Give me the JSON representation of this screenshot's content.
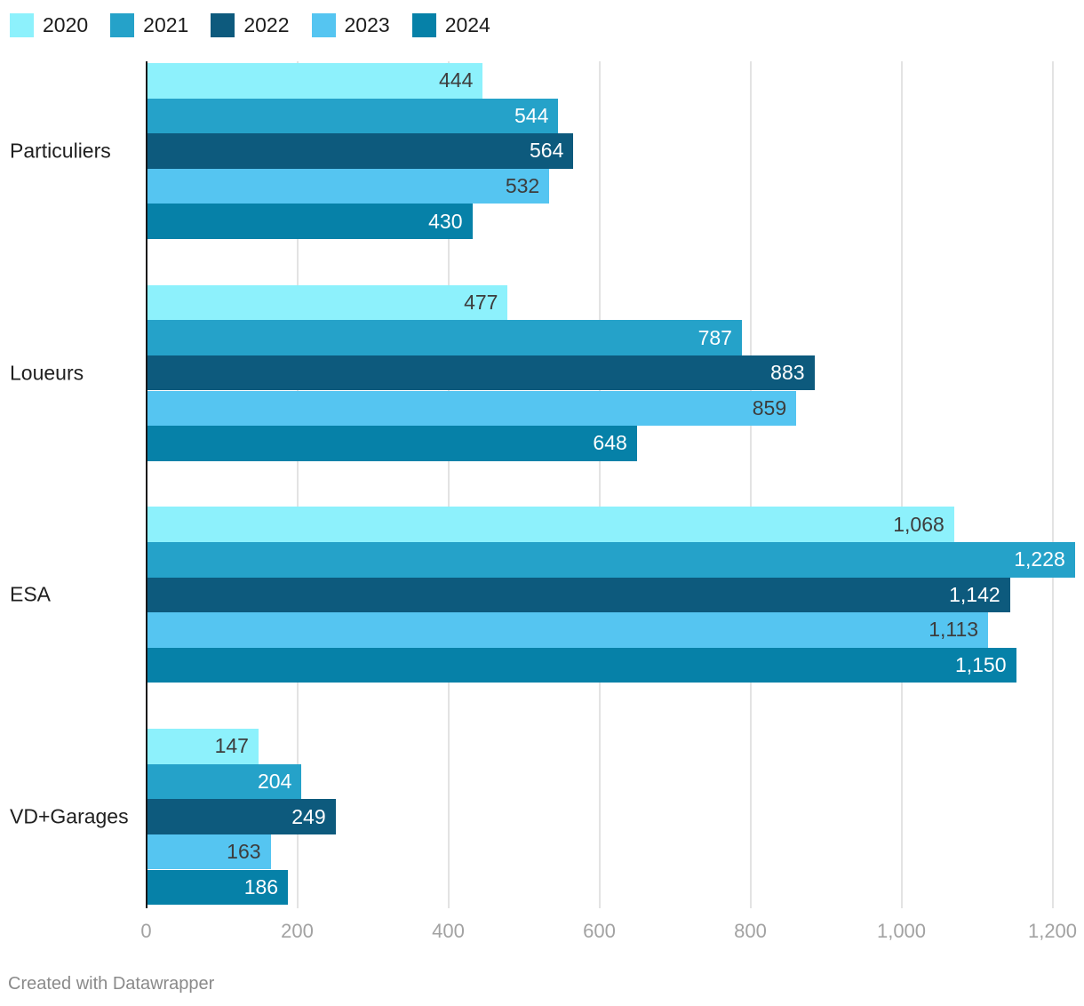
{
  "legend": {
    "items": [
      {
        "label": "2020",
        "color": "#8df1fc"
      },
      {
        "label": "2021",
        "color": "#25a2c9"
      },
      {
        "label": "2022",
        "color": "#0d5a7d"
      },
      {
        "label": "2023",
        "color": "#55c5f1"
      },
      {
        "label": "2024",
        "color": "#0681a8"
      }
    ]
  },
  "chart_data": {
    "type": "bar",
    "orientation": "horizontal",
    "categories": [
      "Particuliers",
      "Loueurs",
      "ESA",
      "VD+Garages"
    ],
    "series": [
      {
        "name": "2020",
        "color": "#8df1fc",
        "label_color": "#3d3d3d",
        "values": [
          444,
          477,
          1068,
          147
        ],
        "value_labels": [
          "444",
          "477",
          "1,068",
          "147"
        ]
      },
      {
        "name": "2021",
        "color": "#25a2c9",
        "label_color": "#ffffff",
        "values": [
          544,
          787,
          1228,
          204
        ],
        "value_labels": [
          "544",
          "787",
          "1,228",
          "204"
        ]
      },
      {
        "name": "2022",
        "color": "#0d5a7d",
        "label_color": "#ffffff",
        "values": [
          564,
          883,
          1142,
          249
        ],
        "value_labels": [
          "564",
          "883",
          "1,142",
          "249"
        ]
      },
      {
        "name": "2023",
        "color": "#55c5f1",
        "label_color": "#3d3d3d",
        "values": [
          532,
          859,
          1113,
          163
        ],
        "value_labels": [
          "532",
          "859",
          "1,113",
          "163"
        ]
      },
      {
        "name": "2024",
        "color": "#0681a8",
        "label_color": "#ffffff",
        "values": [
          430,
          648,
          1150,
          186
        ],
        "value_labels": [
          "430",
          "648",
          "1,150",
          "186"
        ]
      }
    ],
    "x_ticks": [
      {
        "value": 0,
        "label": "0"
      },
      {
        "value": 200,
        "label": "200"
      },
      {
        "value": 400,
        "label": "400"
      },
      {
        "value": 600,
        "label": "600"
      },
      {
        "value": 800,
        "label": "800"
      },
      {
        "value": 1000,
        "label": "1,000"
      },
      {
        "value": 1200,
        "label": "1,200"
      }
    ],
    "xlim": [
      0,
      1240
    ],
    "grid": true,
    "legend_position": "top"
  },
  "colors": {
    "background": "#ffffff",
    "axis_line": "#17181a",
    "gridline": "#e3e3e3",
    "tick_label": "#a2a2a2",
    "category_label": "#1f1f1f",
    "legend_label": "#1d1d1d",
    "footer": "#8a8a8a"
  },
  "footer": {
    "credit": "Created with Datawrapper"
  }
}
